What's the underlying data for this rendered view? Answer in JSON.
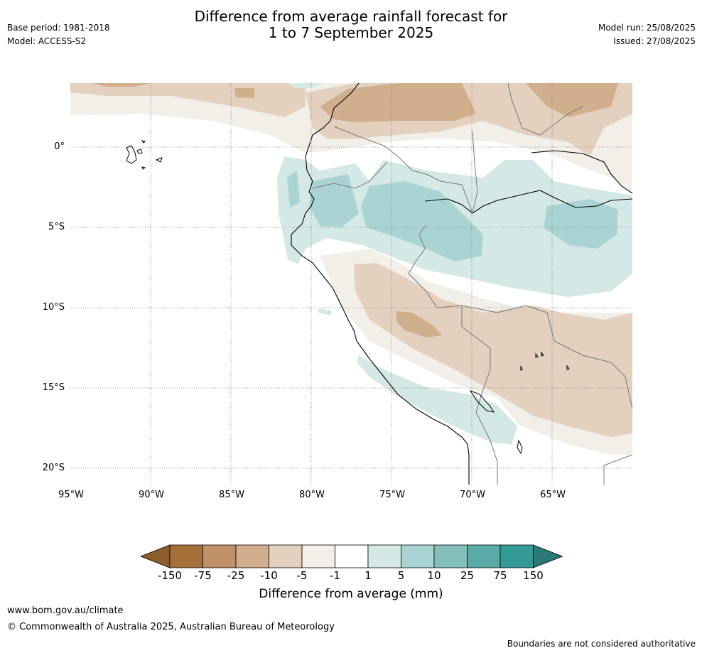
{
  "header": {
    "title_line1": "Difference from average rainfall forecast for",
    "title_line2": "1 to 7 September 2025",
    "base_period": "Base period: 1981-2018",
    "model": "Model: ACCESS-S2",
    "model_run": "Model run: 25/08/2025",
    "issued": "Issued: 27/08/2025"
  },
  "map": {
    "latitude_labels": [
      "0°",
      "5°S",
      "10°S",
      "15°S",
      "20°S"
    ],
    "longitude_labels": [
      "95°W",
      "90°W",
      "85°W",
      "80°W",
      "75°W",
      "70°W",
      "65°W"
    ],
    "extent": {
      "lon_min": -95,
      "lon_max": -60,
      "lat_min": -21,
      "lat_max": 4
    },
    "gridlines": true
  },
  "colorbar": {
    "title": "Difference from average (mm)",
    "tick_labels": [
      "-150",
      "-75",
      "-25",
      "-10",
      "-5",
      "-1",
      "1",
      "5",
      "10",
      "25",
      "75",
      "150"
    ],
    "colors": [
      "#a6703a",
      "#c09068",
      "#d1ae8c",
      "#e3d0bf",
      "#f2eee8",
      "#ffffff",
      "#d4e8e6",
      "#aad4d4",
      "#82bfbd",
      "#5aaaa8",
      "#339a96",
      "#2a7a76"
    ],
    "under_color": "#8d5c2c",
    "over_color": "#2a7a76"
  },
  "footer": {
    "url": "www.bom.gov.au/climate",
    "copyright": "© Commonwealth of Australia 2025, Australian Bureau of Meteorology",
    "disclaimer": "Boundaries are not considered authoritative"
  }
}
